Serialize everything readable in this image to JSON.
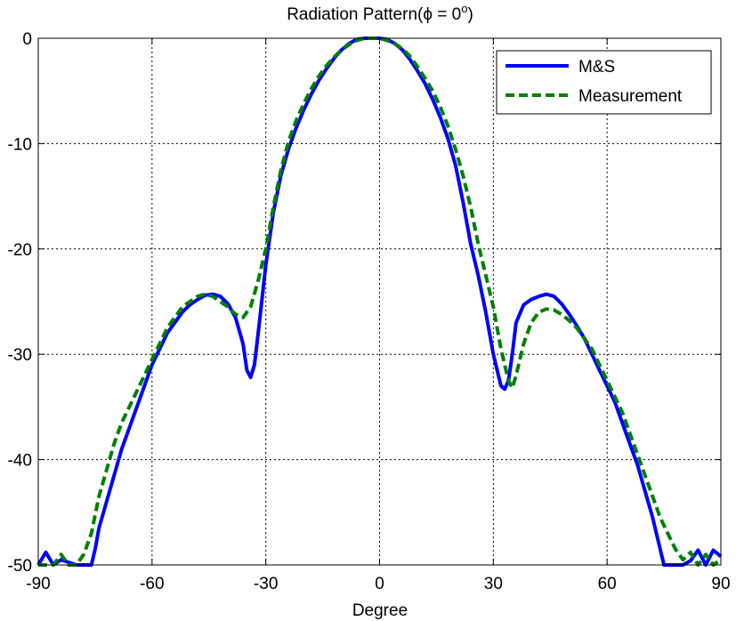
{
  "chart_data": {
    "type": "line",
    "title_main": "Radiation Pattern(",
    "title_symbol": "ϕ = 0",
    "title_sup": "o",
    "title_close": ")",
    "xlabel": "Degree",
    "ylabel": "",
    "xlim": [
      -90,
      90
    ],
    "ylim": [
      -50,
      0
    ],
    "xticks": [
      -90,
      -60,
      -30,
      0,
      30,
      60,
      90
    ],
    "yticks": [
      0,
      -10,
      -20,
      -30,
      -40,
      -50
    ],
    "grid": true,
    "legend_position": "top-right",
    "series": [
      {
        "name": "M&S",
        "color": "#0000ff",
        "style": "solid",
        "x": [
          -90,
          -88,
          -86,
          -84,
          -80,
          -76,
          -75,
          -74,
          -72,
          -70,
          -68,
          -66,
          -64,
          -62,
          -60,
          -58,
          -56,
          -54,
          -52,
          -50,
          -48,
          -46,
          -44,
          -42,
          -40,
          -38,
          -36,
          -35,
          -34,
          -33,
          -32,
          -30,
          -28,
          -26,
          -24,
          -22,
          -20,
          -18,
          -16,
          -14,
          -12,
          -10,
          -8,
          -6,
          -4,
          -2,
          0,
          2,
          4,
          6,
          8,
          10,
          12,
          14,
          16,
          18,
          20,
          22,
          24,
          26,
          28,
          30,
          32,
          33,
          34,
          35,
          36,
          38,
          40,
          42,
          44,
          46,
          48,
          50,
          52,
          54,
          56,
          58,
          60,
          62,
          64,
          66,
          68,
          70,
          72,
          74,
          75,
          76,
          78,
          80,
          82,
          84,
          86,
          88,
          90
        ],
        "y": [
          -50,
          -48.8,
          -50,
          -49.5,
          -50,
          -50,
          -48.5,
          -46.5,
          -44,
          -41.5,
          -39,
          -37,
          -35,
          -33,
          -31,
          -29.5,
          -28,
          -27,
          -26,
          -25.3,
          -24.8,
          -24.4,
          -24.3,
          -24.5,
          -25.2,
          -26.5,
          -29,
          -31.5,
          -32.2,
          -31,
          -28,
          -21.5,
          -16.5,
          -13,
          -10.5,
          -8.5,
          -6.8,
          -5.3,
          -4,
          -2.9,
          -1.9,
          -1.1,
          -0.5,
          -0.1,
          0,
          0,
          0,
          -0.1,
          -0.5,
          -1.1,
          -2,
          -3.1,
          -4.3,
          -5.8,
          -7.5,
          -9.5,
          -12,
          -15.5,
          -19.5,
          -22.5,
          -26,
          -30,
          -33,
          -33.3,
          -32.5,
          -30,
          -27,
          -25.3,
          -24.8,
          -24.5,
          -24.3,
          -24.5,
          -25.2,
          -26.2,
          -27.3,
          -28.5,
          -30,
          -31.5,
          -33,
          -34.5,
          -36.5,
          -38.5,
          -40.5,
          -43,
          -45.5,
          -48.5,
          -50,
          -50,
          -50,
          -50,
          -49.6,
          -48.6,
          -50,
          -48.6,
          -49.2
        ]
      },
      {
        "name": "Measurement",
        "color": "#008000",
        "style": "dashed",
        "x": [
          -90,
          -88,
          -86,
          -84,
          -82,
          -80,
          -78,
          -76,
          -74,
          -72,
          -70,
          -68,
          -66,
          -64,
          -62,
          -60,
          -58,
          -56,
          -54,
          -52,
          -50,
          -48,
          -46,
          -44,
          -42,
          -40,
          -38,
          -36,
          -34,
          -32,
          -30,
          -28,
          -26,
          -24,
          -22,
          -20,
          -18,
          -16,
          -14,
          -12,
          -10,
          -8,
          -6,
          -4,
          -2,
          0,
          2,
          4,
          6,
          8,
          10,
          12,
          14,
          16,
          18,
          20,
          22,
          24,
          26,
          28,
          30,
          32,
          34,
          35,
          36,
          38,
          40,
          42,
          44,
          46,
          48,
          50,
          52,
          54,
          56,
          58,
          60,
          62,
          64,
          66,
          68,
          70,
          72,
          74,
          76,
          78,
          80,
          82,
          84,
          86,
          88,
          90
        ],
        "y": [
          -50,
          -50,
          -50,
          -49,
          -50,
          -50,
          -49,
          -47,
          -43.5,
          -41,
          -38.5,
          -36.5,
          -35,
          -33.5,
          -32,
          -30.5,
          -29,
          -27.5,
          -26.5,
          -25.5,
          -25,
          -24.5,
          -24.3,
          -24.5,
          -25,
          -25.5,
          -26.2,
          -26.5,
          -25.5,
          -23,
          -20,
          -16,
          -12.5,
          -9.8,
          -7.8,
          -6.2,
          -4.8,
          -3.6,
          -2.6,
          -1.8,
          -1.1,
          -0.6,
          -0.2,
          0,
          0,
          0,
          -0.2,
          -0.5,
          -1,
          -1.7,
          -2.7,
          -3.8,
          -5,
          -6.5,
          -8.3,
          -10.5,
          -13,
          -16,
          -19.5,
          -22.5,
          -25.5,
          -29.5,
          -32.5,
          -33.2,
          -32,
          -29,
          -27,
          -26,
          -25.7,
          -25.8,
          -26.2,
          -26.8,
          -27.5,
          -28.5,
          -29.5,
          -31,
          -32.5,
          -34,
          -35.5,
          -37.5,
          -39.5,
          -41.5,
          -43.5,
          -45.5,
          -47,
          -48.5,
          -49.5,
          -48.8,
          -50,
          -49,
          -50,
          -49.5
        ]
      }
    ]
  }
}
